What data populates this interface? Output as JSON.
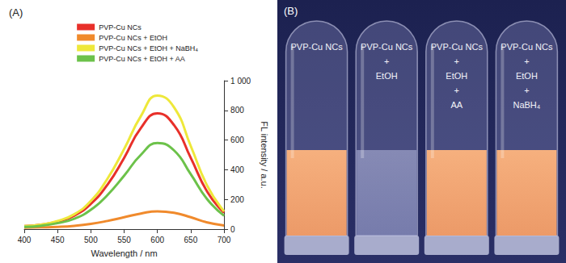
{
  "chart_data": {
    "type": "line",
    "title": "(A)",
    "x_label": "Wavelength / nm",
    "y_label": "FL intensity / a.u.",
    "x": [
      400,
      425,
      450,
      475,
      500,
      525,
      550,
      575,
      600,
      625,
      650,
      675,
      700
    ],
    "series": [
      {
        "name": "PVP-Cu NCs",
        "color": "#e8302a",
        "values": [
          20,
          30,
          50,
          90,
          170,
          300,
          480,
          680,
          780,
          700,
          480,
          250,
          110
        ]
      },
      {
        "name": "PVP-Cu NCs + EtOH",
        "color": "#f08a2c",
        "values": [
          10,
          12,
          15,
          22,
          35,
          55,
          80,
          105,
          120,
          110,
          80,
          45,
          25
        ]
      },
      {
        "name": "PVP-Cu NCs + EtOH + NaBH₄",
        "color": "#eee83a",
        "values": [
          20,
          30,
          55,
          100,
          190,
          340,
          540,
          760,
          900,
          820,
          560,
          290,
          120
        ]
      },
      {
        "name": "PVP-Cu NCs + EtOH + AA",
        "color": "#6cc24a",
        "values": [
          15,
          22,
          40,
          70,
          130,
          230,
          360,
          500,
          580,
          530,
          370,
          200,
          90
        ]
      }
    ],
    "xlim": [
      400,
      700
    ],
    "xticks": [
      400,
      450,
      500,
      550,
      600,
      650,
      700
    ],
    "ylim": [
      0,
      1000
    ],
    "yticks": [
      0,
      200,
      400,
      600,
      800,
      {
        "value": 1000,
        "label": "1 000"
      }
    ],
    "grid": false,
    "legend": "top"
  },
  "panel_b": {
    "label": "(B)",
    "tubes": [
      {
        "text": [
          "PVP-Cu NCs"
        ],
        "fluorescent": true
      },
      {
        "text": [
          "PVP-Cu NCs",
          "+",
          "EtOH"
        ],
        "fluorescent": false
      },
      {
        "text": [
          "PVP-Cu NCs",
          "+",
          "EtOH",
          "+",
          "AA"
        ],
        "fluorescent": true
      },
      {
        "text": [
          "PVP-Cu NCs",
          "+",
          "EtOH",
          "+",
          "NaBH₄"
        ],
        "fluorescent": true
      }
    ]
  }
}
